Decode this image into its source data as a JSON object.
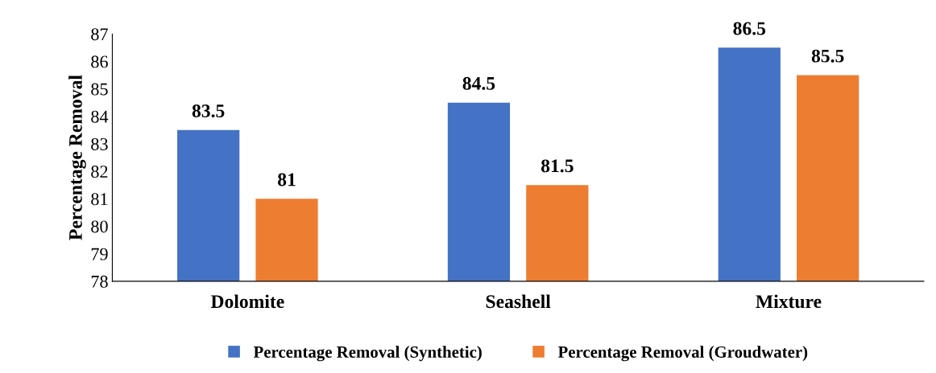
{
  "chart_data": {
    "type": "bar",
    "ylabel": "Percentage Removal",
    "categories": [
      "Dolomite",
      "Seashell",
      "Mixture"
    ],
    "series": [
      {
        "name": "Percentage Removal (Synthetic)",
        "color": "#4472c4",
        "values": [
          83.5,
          84.5,
          86.5
        ]
      },
      {
        "name": "Percentage Removal (Groudwater)",
        "color": "#ed7d31",
        "values": [
          81,
          81.5,
          85.5
        ]
      }
    ],
    "ylim": [
      78,
      87
    ],
    "yticks": [
      78,
      79,
      80,
      81,
      82,
      83,
      84,
      85,
      86,
      87
    ],
    "data_labels": true,
    "grid": false,
    "legend": "bottom"
  }
}
